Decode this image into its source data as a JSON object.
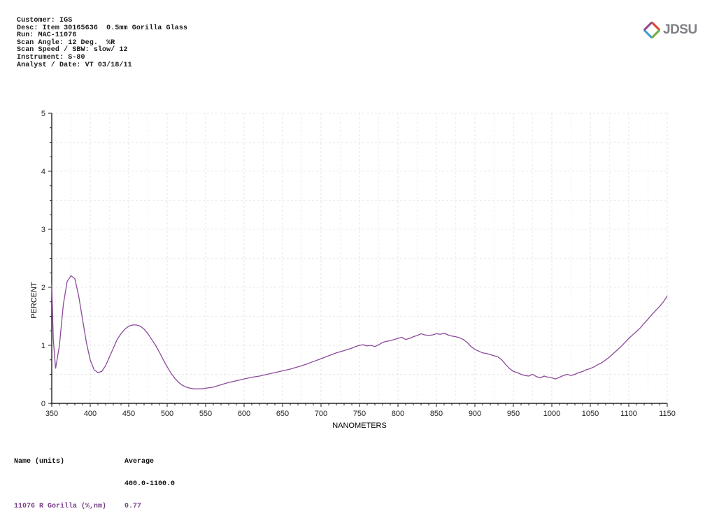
{
  "header": {
    "lines": [
      "Customer: IGS",
      "Desc: Item 30165636  0.5mm Gorilla Glass",
      "Run: MAC-11076",
      "Scan Angle: 12 Deg.  %R",
      "Scan Speed / SBW: slow/ 12",
      "Instrument: S-80",
      "Analyst / Date: VT 03/18/11"
    ]
  },
  "logo": {
    "text": "JDSU",
    "icon": "jdsu-diamond-icon"
  },
  "footer": {
    "name_header": "Name (units)",
    "name_value": "11076 R Gorilla (%,nm)",
    "avg_header": "Average",
    "avg_range": "400.0-1100.0",
    "avg_value": "0.77"
  },
  "colors": {
    "series": "#8a4a9a",
    "grid": "#d8d8d8",
    "axis": "#222222"
  },
  "chart_data": {
    "type": "line",
    "xlabel": "NANOMETERS",
    "ylabel": "PERCENT",
    "xlim": [
      350,
      1150
    ],
    "ylim": [
      0,
      5
    ],
    "xticks": [
      350,
      400,
      450,
      500,
      550,
      600,
      650,
      700,
      750,
      800,
      850,
      900,
      950,
      1000,
      1050,
      1100,
      1150
    ],
    "yticks": [
      0,
      1,
      2,
      3,
      4,
      5
    ],
    "grid": true,
    "series": [
      {
        "values": [
          [
            350,
            2.05
          ],
          [
            352,
            1.1
          ],
          [
            355,
            0.6
          ],
          [
            360,
            1.0
          ],
          [
            365,
            1.7
          ],
          [
            370,
            2.1
          ],
          [
            375,
            2.2
          ],
          [
            380,
            2.15
          ],
          [
            385,
            1.85
          ],
          [
            390,
            1.45
          ],
          [
            395,
            1.05
          ],
          [
            400,
            0.75
          ],
          [
            405,
            0.58
          ],
          [
            410,
            0.53
          ],
          [
            415,
            0.55
          ],
          [
            420,
            0.65
          ],
          [
            425,
            0.8
          ],
          [
            430,
            0.95
          ],
          [
            435,
            1.1
          ],
          [
            440,
            1.2
          ],
          [
            445,
            1.28
          ],
          [
            450,
            1.33
          ],
          [
            455,
            1.35
          ],
          [
            460,
            1.35
          ],
          [
            465,
            1.33
          ],
          [
            470,
            1.28
          ],
          [
            475,
            1.2
          ],
          [
            480,
            1.1
          ],
          [
            485,
            1.0
          ],
          [
            490,
            0.88
          ],
          [
            495,
            0.75
          ],
          [
            500,
            0.63
          ],
          [
            505,
            0.52
          ],
          [
            510,
            0.43
          ],
          [
            515,
            0.36
          ],
          [
            520,
            0.31
          ],
          [
            525,
            0.28
          ],
          [
            530,
            0.26
          ],
          [
            535,
            0.25
          ],
          [
            540,
            0.25
          ],
          [
            545,
            0.25
          ],
          [
            550,
            0.26
          ],
          [
            560,
            0.28
          ],
          [
            570,
            0.32
          ],
          [
            580,
            0.36
          ],
          [
            590,
            0.39
          ],
          [
            600,
            0.42
          ],
          [
            610,
            0.45
          ],
          [
            620,
            0.47
          ],
          [
            630,
            0.5
          ],
          [
            640,
            0.53
          ],
          [
            650,
            0.56
          ],
          [
            660,
            0.59
          ],
          [
            670,
            0.63
          ],
          [
            680,
            0.67
          ],
          [
            690,
            0.72
          ],
          [
            700,
            0.77
          ],
          [
            710,
            0.82
          ],
          [
            720,
            0.87
          ],
          [
            730,
            0.91
          ],
          [
            740,
            0.95
          ],
          [
            745,
            0.98
          ],
          [
            750,
            1.0
          ],
          [
            755,
            1.01
          ],
          [
            760,
            0.99
          ],
          [
            765,
            1.0
          ],
          [
            770,
            0.98
          ],
          [
            775,
            1.01
          ],
          [
            780,
            1.05
          ],
          [
            785,
            1.07
          ],
          [
            790,
            1.08
          ],
          [
            795,
            1.1
          ],
          [
            800,
            1.12
          ],
          [
            805,
            1.14
          ],
          [
            810,
            1.1
          ],
          [
            815,
            1.12
          ],
          [
            820,
            1.15
          ],
          [
            825,
            1.17
          ],
          [
            830,
            1.2
          ],
          [
            835,
            1.18
          ],
          [
            840,
            1.17
          ],
          [
            845,
            1.18
          ],
          [
            850,
            1.2
          ],
          [
            855,
            1.19
          ],
          [
            860,
            1.21
          ],
          [
            865,
            1.18
          ],
          [
            870,
            1.16
          ],
          [
            875,
            1.15
          ],
          [
            880,
            1.13
          ],
          [
            885,
            1.1
          ],
          [
            890,
            1.05
          ],
          [
            895,
            0.98
          ],
          [
            900,
            0.93
          ],
          [
            905,
            0.9
          ],
          [
            910,
            0.87
          ],
          [
            915,
            0.86
          ],
          [
            920,
            0.84
          ],
          [
            925,
            0.82
          ],
          [
            930,
            0.8
          ],
          [
            935,
            0.75
          ],
          [
            940,
            0.67
          ],
          [
            945,
            0.6
          ],
          [
            950,
            0.55
          ],
          [
            955,
            0.53
          ],
          [
            960,
            0.5
          ],
          [
            965,
            0.48
          ],
          [
            970,
            0.47
          ],
          [
            975,
            0.5
          ],
          [
            980,
            0.46
          ],
          [
            985,
            0.44
          ],
          [
            990,
            0.47
          ],
          [
            995,
            0.45
          ],
          [
            1000,
            0.44
          ],
          [
            1005,
            0.42
          ],
          [
            1010,
            0.45
          ],
          [
            1015,
            0.48
          ],
          [
            1020,
            0.5
          ],
          [
            1025,
            0.48
          ],
          [
            1030,
            0.5
          ],
          [
            1035,
            0.53
          ],
          [
            1040,
            0.55
          ],
          [
            1045,
            0.58
          ],
          [
            1050,
            0.6
          ],
          [
            1055,
            0.63
          ],
          [
            1060,
            0.67
          ],
          [
            1065,
            0.7
          ],
          [
            1070,
            0.75
          ],
          [
            1075,
            0.8
          ],
          [
            1080,
            0.86
          ],
          [
            1085,
            0.92
          ],
          [
            1090,
            0.98
          ],
          [
            1095,
            1.05
          ],
          [
            1100,
            1.12
          ],
          [
            1105,
            1.18
          ],
          [
            1110,
            1.24
          ],
          [
            1115,
            1.3
          ],
          [
            1120,
            1.38
          ],
          [
            1125,
            1.45
          ],
          [
            1130,
            1.53
          ],
          [
            1135,
            1.6
          ],
          [
            1140,
            1.67
          ],
          [
            1145,
            1.75
          ],
          [
            1150,
            1.85
          ]
        ]
      }
    ]
  }
}
